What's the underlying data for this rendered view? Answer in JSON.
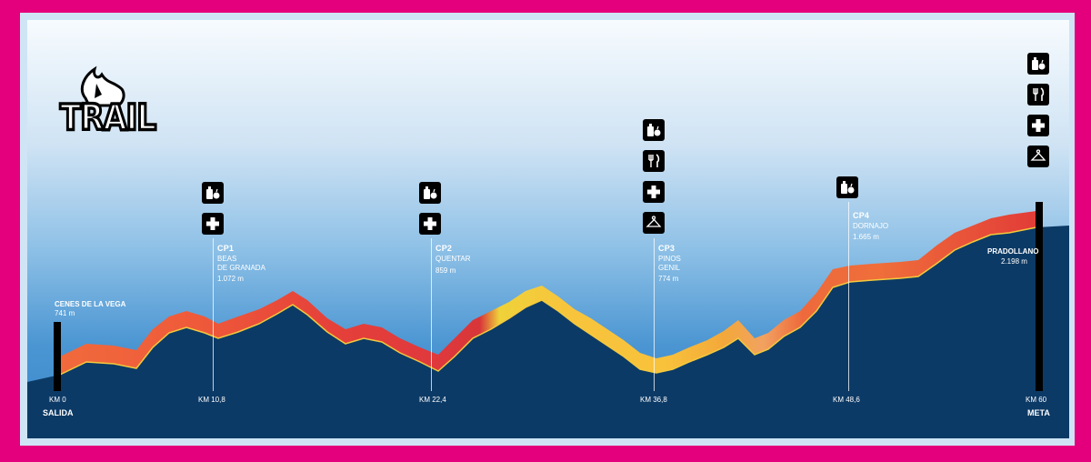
{
  "logo": {
    "text": "TRAIL"
  },
  "start": {
    "name": "CENES DE LA VEGA",
    "altitude": "741 m",
    "km": "KM 0",
    "label": "SALIDA"
  },
  "finish": {
    "name": "PRADOLLANO",
    "altitude": "2.198 m",
    "km": "KM 60",
    "label": "META"
  },
  "checkpoints": [
    {
      "id": "CP1",
      "place_lines": [
        "BEAS",
        "DE GRANADA"
      ],
      "altitude": "1.072 m",
      "km": "KM 10,8",
      "services": [
        "drinks-food-icon",
        "first-aid-icon"
      ]
    },
    {
      "id": "CP2",
      "place_lines": [
        "QUENTAR"
      ],
      "altitude": "859 m",
      "km": "KM 22,4",
      "services": [
        "drinks-food-icon",
        "first-aid-icon"
      ]
    },
    {
      "id": "CP3",
      "place_lines": [
        "PINOS",
        "GENIL"
      ],
      "altitude": "774 m",
      "km": "KM 36,8",
      "services": [
        "drinks-food-icon",
        "cutlery-icon",
        "first-aid-icon",
        "cloakroom-icon"
      ]
    },
    {
      "id": "CP4",
      "place_lines": [
        "DORNAJO"
      ],
      "altitude": "1.665 m",
      "km": "KM 48,6",
      "services": [
        "drinks-food-icon"
      ]
    }
  ],
  "finish_services": [
    "drinks-food-icon",
    "cutlery-icon",
    "first-aid-icon",
    "cloakroom-icon"
  ],
  "colors": {
    "border": "#e4007c",
    "ground": "#0c3a66",
    "ridge_red": "#e2463a",
    "ridge_orange": "#f08a3c",
    "ridge_yellow": "#f7c63a"
  }
}
